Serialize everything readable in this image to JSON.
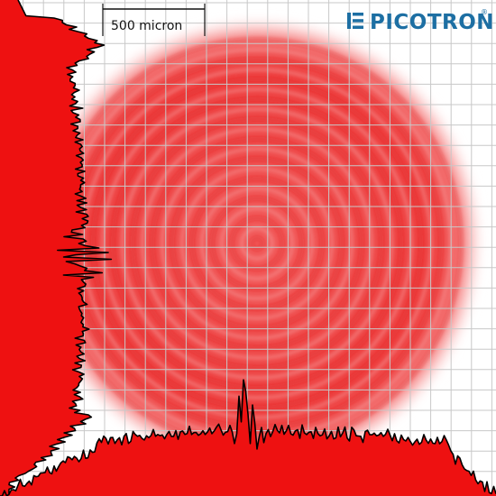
{
  "scale_bar": {
    "label": "500 micron"
  },
  "logo": {
    "name": "PICOTRONIC",
    "mark": "®",
    "icon": "picotronic-logo-icon",
    "color": "#1d6fa3"
  },
  "colors": {
    "beam": "#e01818",
    "profile_fill": "#ee1111",
    "profile_line": "#000000",
    "grid": "#b9b9b9",
    "background": "#ffffff"
  }
}
